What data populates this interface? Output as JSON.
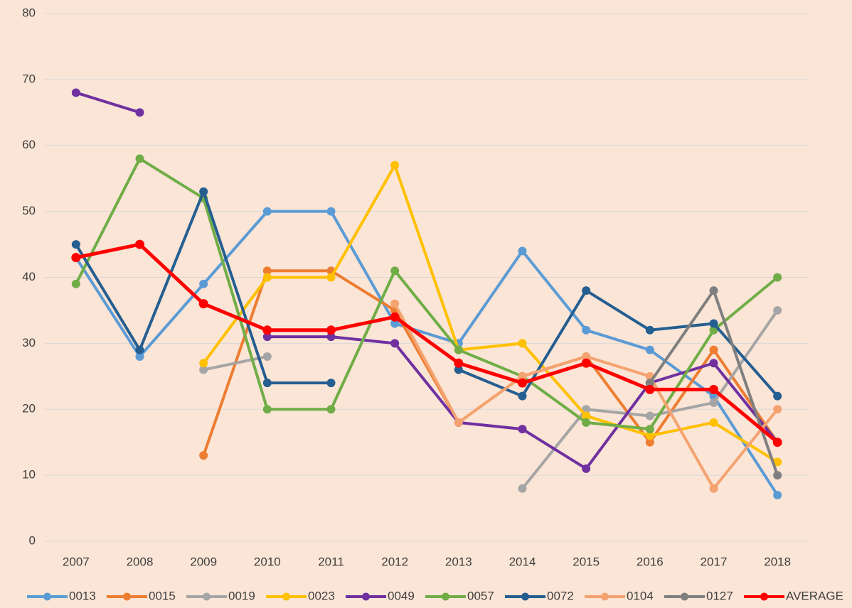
{
  "chart_data": {
    "type": "line",
    "categories": [
      "2007",
      "2008",
      "2009",
      "2010",
      "2011",
      "2012",
      "2013",
      "2014",
      "2015",
      "2016",
      "2017",
      "2018"
    ],
    "ylim": [
      0,
      80
    ],
    "yticks": [
      0,
      10,
      20,
      30,
      40,
      50,
      60,
      70,
      80
    ],
    "grid": true,
    "legend": "bottom",
    "series": [
      {
        "name": "0013",
        "color": "#5b9bd5",
        "values": [
          43,
          28,
          39,
          50,
          50,
          33,
          30,
          44,
          32,
          29,
          22,
          7
        ]
      },
      {
        "name": "0015",
        "color": "#ed7d31",
        "values": [
          null,
          null,
          13,
          41,
          41,
          35,
          18,
          25,
          28,
          15,
          29,
          15
        ]
      },
      {
        "name": "0019",
        "color": "#a5a5a5",
        "values": [
          null,
          null,
          26,
          28,
          null,
          null,
          null,
          8,
          20,
          19,
          21,
          35
        ]
      },
      {
        "name": "0023",
        "color": "#ffc000",
        "values": [
          null,
          null,
          27,
          40,
          40,
          57,
          29,
          30,
          19,
          16,
          18,
          12
        ]
      },
      {
        "name": "0049",
        "color": "#7030a0",
        "values": [
          68,
          65,
          null,
          31,
          31,
          30,
          18,
          17,
          11,
          24,
          27,
          15
        ]
      },
      {
        "name": "0057",
        "color": "#70ad47",
        "values": [
          39,
          58,
          52,
          20,
          20,
          41,
          29,
          25,
          18,
          17,
          32,
          40
        ]
      },
      {
        "name": "0072",
        "color": "#255e91",
        "values": [
          45,
          29,
          53,
          24,
          24,
          null,
          26,
          22,
          38,
          32,
          33,
          22
        ]
      },
      {
        "name": "0104",
        "color": "#f4a370",
        "values": [
          null,
          null,
          null,
          null,
          null,
          36,
          18,
          25,
          28,
          25,
          8,
          20
        ]
      },
      {
        "name": "0127",
        "color": "#7f7f7f",
        "values": [
          null,
          null,
          null,
          null,
          null,
          null,
          null,
          null,
          null,
          24,
          38,
          10
        ]
      },
      {
        "name": "AVERAGE",
        "color": "#ff0000",
        "values": [
          43,
          45,
          36,
          32,
          32,
          34,
          27,
          24,
          27,
          23,
          23,
          15
        ]
      }
    ]
  }
}
